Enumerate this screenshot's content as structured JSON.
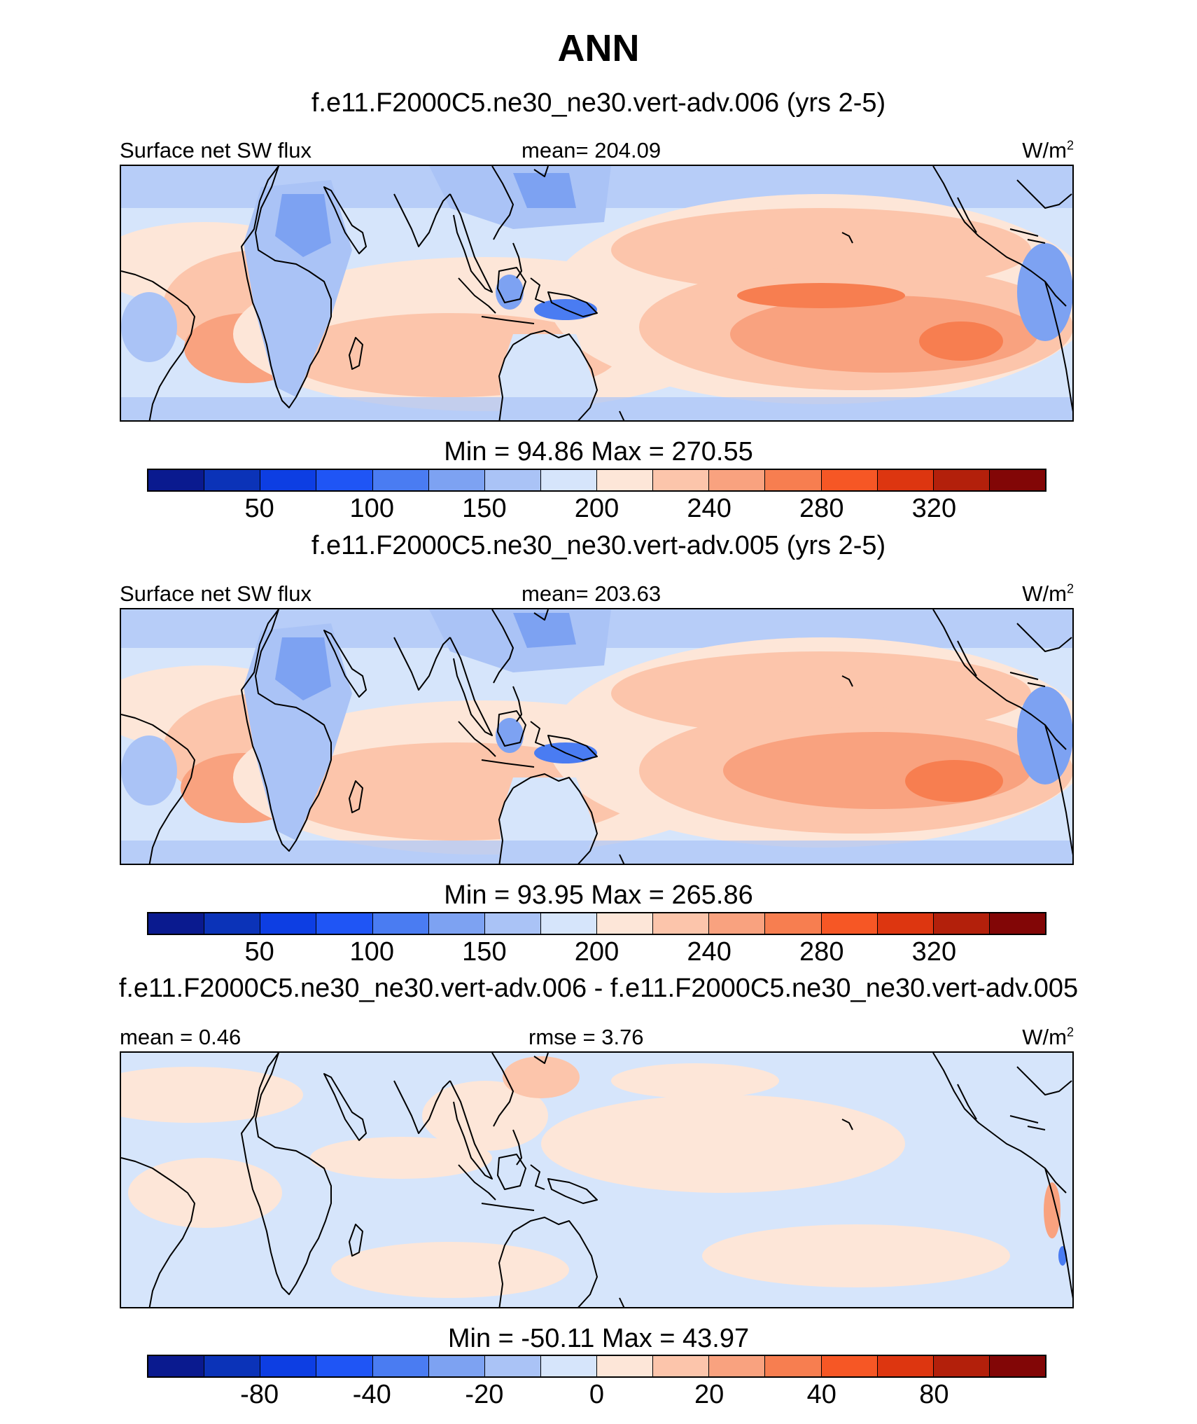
{
  "title": "ANN",
  "colors": {
    "scale": [
      "#0a1a8f",
      "#0b33b8",
      "#0d3ee3",
      "#1f55f5",
      "#4a7cf2",
      "#7da2f2",
      "#aac3f6",
      "#d6e5fb",
      "#fde6d8",
      "#fcc5ab",
      "#f9a27f",
      "#f77e50",
      "#f65725",
      "#dd3610",
      "#b3200b",
      "#820606"
    ],
    "land_outline": "#000000"
  },
  "panels": [
    {
      "case_title": "f.e11.F2000C5.ne30_ne30.vert-adv.006 (yrs 2-5)",
      "left_label": "Surface net SW flux",
      "center_label": "mean= 204.09",
      "units": "W/m",
      "units_sup": "2",
      "minmax": "Min =  94.86 Max = 270.55",
      "ticks": [
        "50",
        "100",
        "150",
        "200",
        "240",
        "280",
        "320"
      ]
    },
    {
      "case_title": "f.e11.F2000C5.ne30_ne30.vert-adv.005 (yrs 2-5)",
      "left_label": "Surface net SW flux",
      "center_label": "mean= 203.63",
      "units": "W/m",
      "units_sup": "2",
      "minmax": "Min =  93.95 Max = 265.86",
      "ticks": [
        "50",
        "100",
        "150",
        "200",
        "240",
        "280",
        "320"
      ]
    },
    {
      "case_title": "f.e11.F2000C5.ne30_ne30.vert-adv.006 - f.e11.F2000C5.ne30_ne30.vert-adv.005",
      "left_label": "mean =   0.46",
      "center_label": "rmse =   3.76",
      "units": "W/m",
      "units_sup": "2",
      "minmax": "Min = -50.11 Max =  43.97",
      "ticks": [
        "-80",
        "-40",
        "-20",
        "0",
        "20",
        "40",
        "80"
      ]
    }
  ]
}
